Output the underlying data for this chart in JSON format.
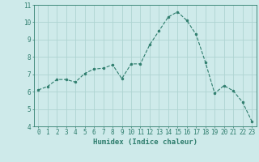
{
  "x": [
    0,
    1,
    2,
    3,
    4,
    5,
    6,
    7,
    8,
    9,
    10,
    11,
    12,
    13,
    14,
    15,
    16,
    17,
    18,
    19,
    20,
    21,
    22,
    23
  ],
  "y": [
    6.1,
    6.3,
    6.7,
    6.7,
    6.55,
    7.05,
    7.3,
    7.35,
    7.55,
    6.75,
    7.6,
    7.6,
    8.7,
    9.5,
    10.3,
    10.6,
    10.1,
    9.3,
    7.7,
    5.9,
    6.35,
    6.05,
    5.4,
    4.3
  ],
  "line_color": "#2e7d6d",
  "marker_color": "#2e7d6d",
  "bg_color": "#ceeaea",
  "grid_color": "#aed4d2",
  "axis_color": "#2e7d6d",
  "xlabel": "Humidex (Indice chaleur)",
  "xlim": [
    -0.5,
    23.5
  ],
  "ylim": [
    4,
    11
  ],
  "yticks": [
    4,
    5,
    6,
    7,
    8,
    9,
    10,
    11
  ],
  "xticks": [
    0,
    1,
    2,
    3,
    4,
    5,
    6,
    7,
    8,
    9,
    10,
    11,
    12,
    13,
    14,
    15,
    16,
    17,
    18,
    19,
    20,
    21,
    22,
    23
  ],
  "tick_font_size": 5.5,
  "label_font_size": 6.5,
  "line_width": 0.8,
  "marker_size": 2.0
}
